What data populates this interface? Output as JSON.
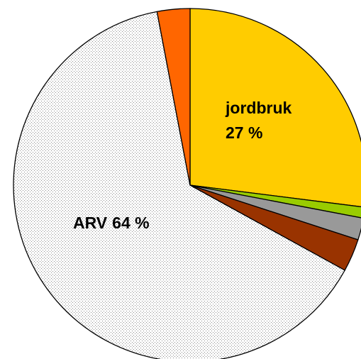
{
  "chart_data": {
    "type": "pie",
    "categories": [
      "jordbruk",
      null,
      null,
      null,
      "ARV",
      null
    ],
    "values": [
      27,
      1,
      2,
      3,
      64,
      3
    ],
    "value_labels": [
      "27 %",
      null,
      null,
      null,
      "64 %",
      null
    ],
    "colors": [
      "#ffcc00",
      "#99cc00",
      "#999999",
      "#993300",
      "#ffffff",
      "#ff6600"
    ],
    "patterns": [
      null,
      null,
      null,
      null,
      "dots",
      null
    ],
    "start_angle": 0,
    "direction": "clockwise"
  }
}
